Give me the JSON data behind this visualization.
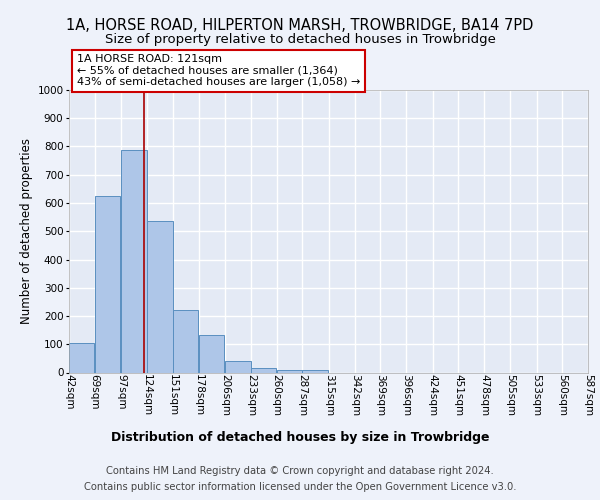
{
  "title": "1A, HORSE ROAD, HILPERTON MARSH, TROWBRIDGE, BA14 7PD",
  "subtitle": "Size of property relative to detached houses in Trowbridge",
  "xlabel": "Distribution of detached houses by size in Trowbridge",
  "ylabel": "Number of detached properties",
  "footer_line1": "Contains HM Land Registry data © Crown copyright and database right 2024.",
  "footer_line2": "Contains public sector information licensed under the Open Government Licence v3.0.",
  "bins": [
    42,
    69,
    97,
    124,
    151,
    178,
    206,
    233,
    260,
    287,
    315,
    342,
    369,
    396,
    424,
    451,
    478,
    505,
    533,
    560,
    587
  ],
  "bar_values": [
    103,
    625,
    787,
    537,
    222,
    132,
    42,
    16,
    10,
    10,
    0,
    0,
    0,
    0,
    0,
    0,
    0,
    0,
    0,
    0
  ],
  "bar_color": "#aec6e8",
  "bar_edge_color": "#5a8fc0",
  "property_size": 121,
  "red_line_color": "#aa0000",
  "annotation_text": "1A HORSE ROAD: 121sqm\n← 55% of detached houses are smaller (1,364)\n43% of semi-detached houses are larger (1,058) →",
  "annotation_box_color": "#ffffff",
  "annotation_box_edge_color": "#cc0000",
  "ylim": [
    0,
    1000
  ],
  "yticks": [
    0,
    100,
    200,
    300,
    400,
    500,
    600,
    700,
    800,
    900,
    1000
  ],
  "background_color": "#eef2fa",
  "plot_background_color": "#e4eaf5",
  "grid_color": "#ffffff",
  "title_fontsize": 10.5,
  "subtitle_fontsize": 9.5,
  "xlabel_fontsize": 9,
  "ylabel_fontsize": 8.5,
  "footer_fontsize": 7.2,
  "annot_fontsize": 8,
  "tick_fontsize": 7.5
}
